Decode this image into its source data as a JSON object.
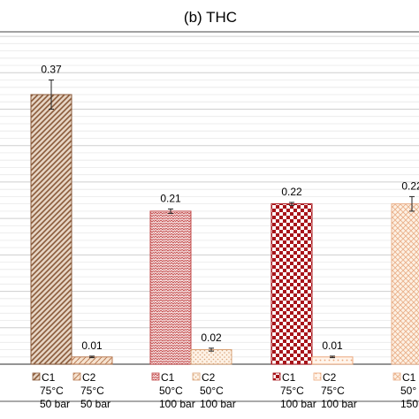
{
  "chart_data": {
    "type": "bar",
    "title": "(b) THC",
    "ylim": [
      0,
      0.45
    ],
    "grid": true,
    "groups": [
      {
        "conditions": [
          "75°C",
          "50 bar"
        ],
        "bars": [
          {
            "label": "C1",
            "value": 0.37,
            "error": 0.02,
            "color": "#b08468"
          },
          {
            "label": "C2",
            "value": 0.01,
            "error": 0.001,
            "color": "#c29a78"
          }
        ]
      },
      {
        "conditions": [
          "50°C",
          "100 bar"
        ],
        "bars": [
          {
            "label": "C1",
            "value": 0.21,
            "error": 0.003,
            "color": "#c24848"
          },
          {
            "label": "C2",
            "value": 0.02,
            "error": 0.002,
            "color": "#e2c2a4"
          }
        ]
      },
      {
        "conditions": [
          "75°C",
          "100 bar"
        ],
        "bars": [
          {
            "label": "C1",
            "value": 0.22,
            "error": 0.002,
            "color": "#a8141a"
          },
          {
            "label": "C2",
            "value": 0.01,
            "error": 0.001,
            "color": "#f0b890"
          }
        ]
      },
      {
        "conditions": [
          "50°",
          "150"
        ],
        "bars": [
          {
            "label": "C1",
            "value": 0.22,
            "error": 0.01,
            "color": "#e8a870"
          }
        ]
      }
    ]
  }
}
